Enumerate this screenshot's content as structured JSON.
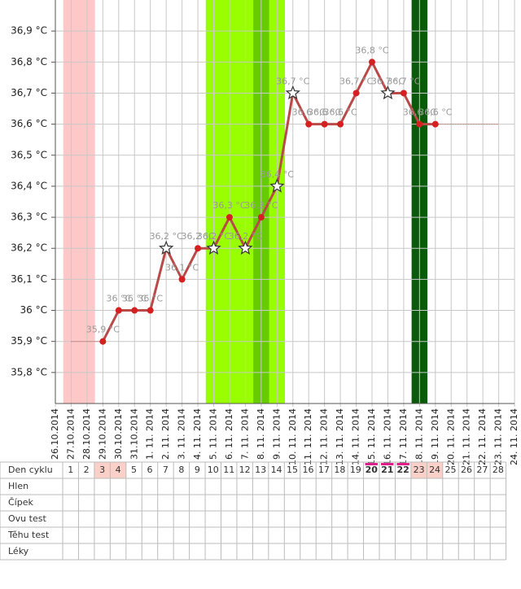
{
  "chart_data": {
    "type": "line",
    "categories": [
      "26.10.2014",
      "27.10.2014",
      "28.10.2014",
      "29.10.2014",
      "30.10.2014",
      "31.10.2014",
      "1. 11. 2014",
      "2. 11. 2014",
      "3. 11. 2014",
      "4. 11. 2014",
      "5. 11. 2014",
      "6. 11. 2014",
      "7. 11. 2014",
      "8. 11. 2014",
      "9. 11. 2014",
      "10. 11. 2014",
      "11. 11. 2014",
      "12. 11. 2014",
      "13. 11. 2014",
      "14. 11. 2014",
      "15. 11. 2014",
      "16. 11. 2014",
      "17. 11. 2014",
      "18. 11. 2014",
      "19. 11. 2014",
      "20. 11. 2014",
      "21. 11. 2014",
      "22. 11. 2014",
      "23. 11. 2014",
      "24. 11. 2014"
    ],
    "values": [
      null,
      null,
      null,
      35.9,
      36.0,
      36.0,
      36.0,
      36.2,
      36.1,
      36.2,
      36.2,
      36.3,
      36.2,
      36.3,
      36.4,
      36.7,
      36.6,
      36.6,
      36.6,
      36.7,
      36.8,
      36.7,
      36.7,
      36.6,
      36.6,
      null,
      null,
      null,
      null,
      null
    ],
    "value_labels": [
      null,
      null,
      null,
      "35,9 °C",
      "36 °C",
      "36 °C",
      "36 °C",
      "36,2 °C",
      "36,1 °C",
      "36,2 °C",
      "36,2 °C",
      "36,3 °C",
      "36,2 °C",
      "36,3 °C",
      "36,4 °C",
      "36,7 °C",
      "36,6 °C",
      "36,6 °C",
      "36,6 °C",
      "36,7 °C",
      "36,8 °C",
      "36,7 °C",
      "36,7 °C",
      "36,6 °C",
      "36,6 °C",
      null,
      null,
      null,
      null,
      null
    ],
    "point_styles": [
      null,
      null,
      null,
      "dot",
      "dot",
      "dot",
      "dot",
      "star",
      "dot",
      "dot",
      "star",
      "dot",
      "star",
      "dot",
      "star",
      "star",
      "dot",
      "dot",
      "dot",
      "dot",
      "dot",
      "star",
      "dot",
      "dot",
      "dot",
      null,
      null,
      null,
      null,
      null
    ],
    "color": "#b94a48",
    "point_color": "#d42020",
    "ylim": [
      35.7,
      37.0
    ],
    "yticks": [
      {
        "value": 35.8,
        "label": "35,8 °C"
      },
      {
        "value": 35.9,
        "label": "35,9 °C"
      },
      {
        "value": 36.0,
        "label": "36 °C"
      },
      {
        "value": 36.1,
        "label": "36,1 °C"
      },
      {
        "value": 36.2,
        "label": "36,2 °C"
      },
      {
        "value": 36.3,
        "label": "36,3 °C"
      },
      {
        "value": 36.4,
        "label": "36,4 °C"
      },
      {
        "value": 36.5,
        "label": "36,5 °C"
      },
      {
        "value": 36.6,
        "label": "36,6 °C"
      },
      {
        "value": 36.7,
        "label": "36,7 °C"
      },
      {
        "value": 36.8,
        "label": "36,8 °C"
      },
      {
        "value": 36.9,
        "label": "36,9 °C"
      }
    ],
    "grid": true,
    "bands": [
      {
        "from": "27.10.2014",
        "to": "28.10.2014",
        "color": "#ffc8c8"
      },
      {
        "from": "5. 11. 2014",
        "to": "9. 11. 2014",
        "color": "#99ff00"
      },
      {
        "from": "8. 11. 2014",
        "to": "8. 11. 2014",
        "color": "#66cc00"
      },
      {
        "from": "18. 11. 2014",
        "to": "18. 11. 2014",
        "color": "#0b5a0b"
      }
    ]
  },
  "table": {
    "rows": [
      "Den cyklu",
      "Hlen",
      "Čípek",
      "Ovu test",
      "Těhu test",
      "Léky"
    ],
    "days": [
      1,
      2,
      3,
      4,
      5,
      6,
      7,
      8,
      9,
      10,
      11,
      12,
      13,
      14,
      15,
      16,
      17,
      18,
      19,
      20,
      21,
      22,
      23,
      24,
      25,
      26,
      27,
      28
    ],
    "highlight_days": [
      3,
      4,
      23,
      24
    ],
    "marked_days": [
      20,
      21,
      22
    ]
  }
}
